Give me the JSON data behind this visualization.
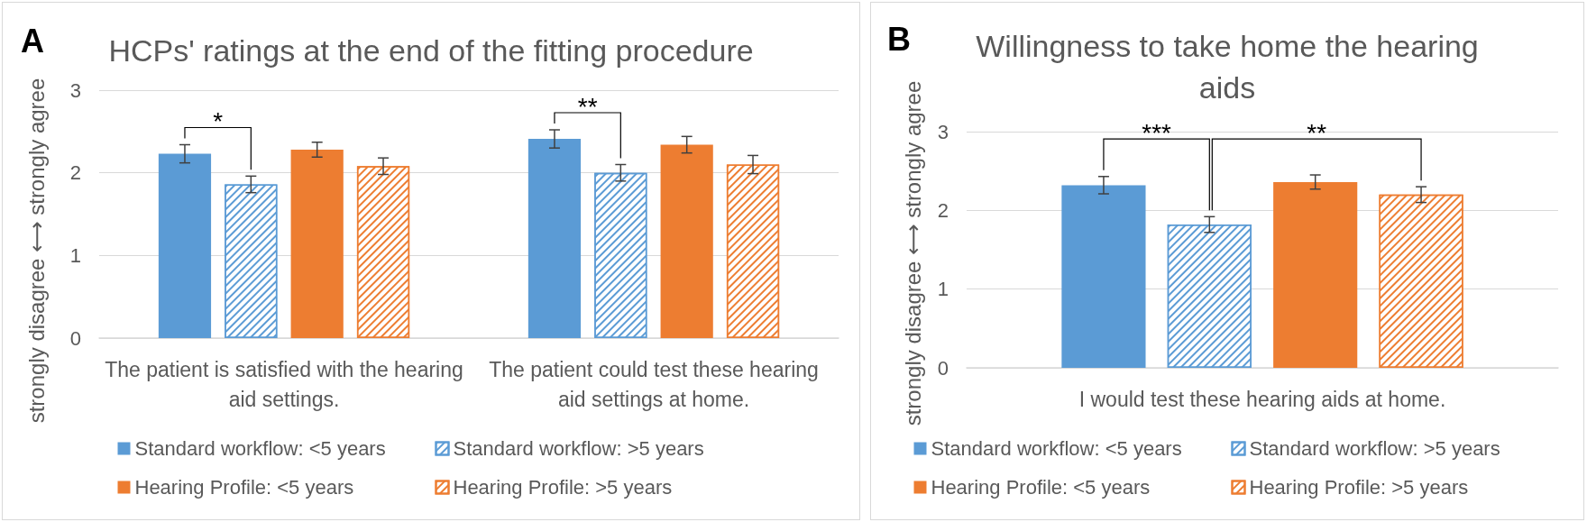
{
  "chart_data": [
    {
      "type": "bar",
      "title": "HCPs' ratings at the end of the fitting procedure",
      "ylabel": "strongly disagree ⟷ strongly agree",
      "categories": [
        "The patient is satisfied with the hearing aid settings.",
        "The patient could test these hearing aid settings at home."
      ],
      "series": [
        {
          "name": "Standard workflow: <5 years",
          "color": "#5b9bd5",
          "values": [
            2.23,
            2.41
          ],
          "errors": [
            0.11,
            0.11
          ]
        },
        {
          "name": "Standard workflow: >5 years",
          "color": "#5b9bd5",
          "values": [
            1.86,
            2.0
          ],
          "errors": [
            0.1,
            0.1
          ]
        },
        {
          "name": "Hearing Profile: <5 years",
          "color": "#ed7d31",
          "values": [
            2.28,
            2.34
          ],
          "errors": [
            0.09,
            0.1
          ]
        },
        {
          "name": "Hearing Profile: >5 years",
          "color": "#ed7d31",
          "values": [
            2.08,
            2.1
          ],
          "errors": [
            0.1,
            0.11
          ]
        }
      ],
      "ylim": [
        0,
        3
      ],
      "yticks": [
        0,
        1,
        2,
        3
      ],
      "grid": "y",
      "legend": "bottom",
      "annotations": [
        "A",
        "*",
        "**"
      ]
    },
    {
      "type": "bar",
      "title": "Willingness to take home the hearing aids",
      "ylabel": "strongly disagree ⟷ strongly agree",
      "categories": [
        "I would test these hearing aids at home."
      ],
      "series": [
        {
          "name": "Standard workflow: <5 years",
          "color": "#5b9bd5",
          "values": [
            2.32
          ],
          "errors": [
            0.11
          ]
        },
        {
          "name": "Standard workflow: >5 years",
          "color": "#5b9bd5",
          "values": [
            1.82
          ],
          "errors": [
            0.1
          ]
        },
        {
          "name": "Hearing Profile: <5 years",
          "color": "#ed7d31",
          "values": [
            2.36
          ],
          "errors": [
            0.09
          ]
        },
        {
          "name": "Hearing Profile: >5 years",
          "color": "#ed7d31",
          "values": [
            2.2
          ],
          "errors": [
            0.1
          ]
        }
      ],
      "ylim": [
        0,
        3
      ],
      "yticks": [
        0,
        1,
        2,
        3
      ],
      "grid": "y",
      "legend": "bottom",
      "annotations": [
        "B",
        "***",
        "**"
      ]
    }
  ]
}
